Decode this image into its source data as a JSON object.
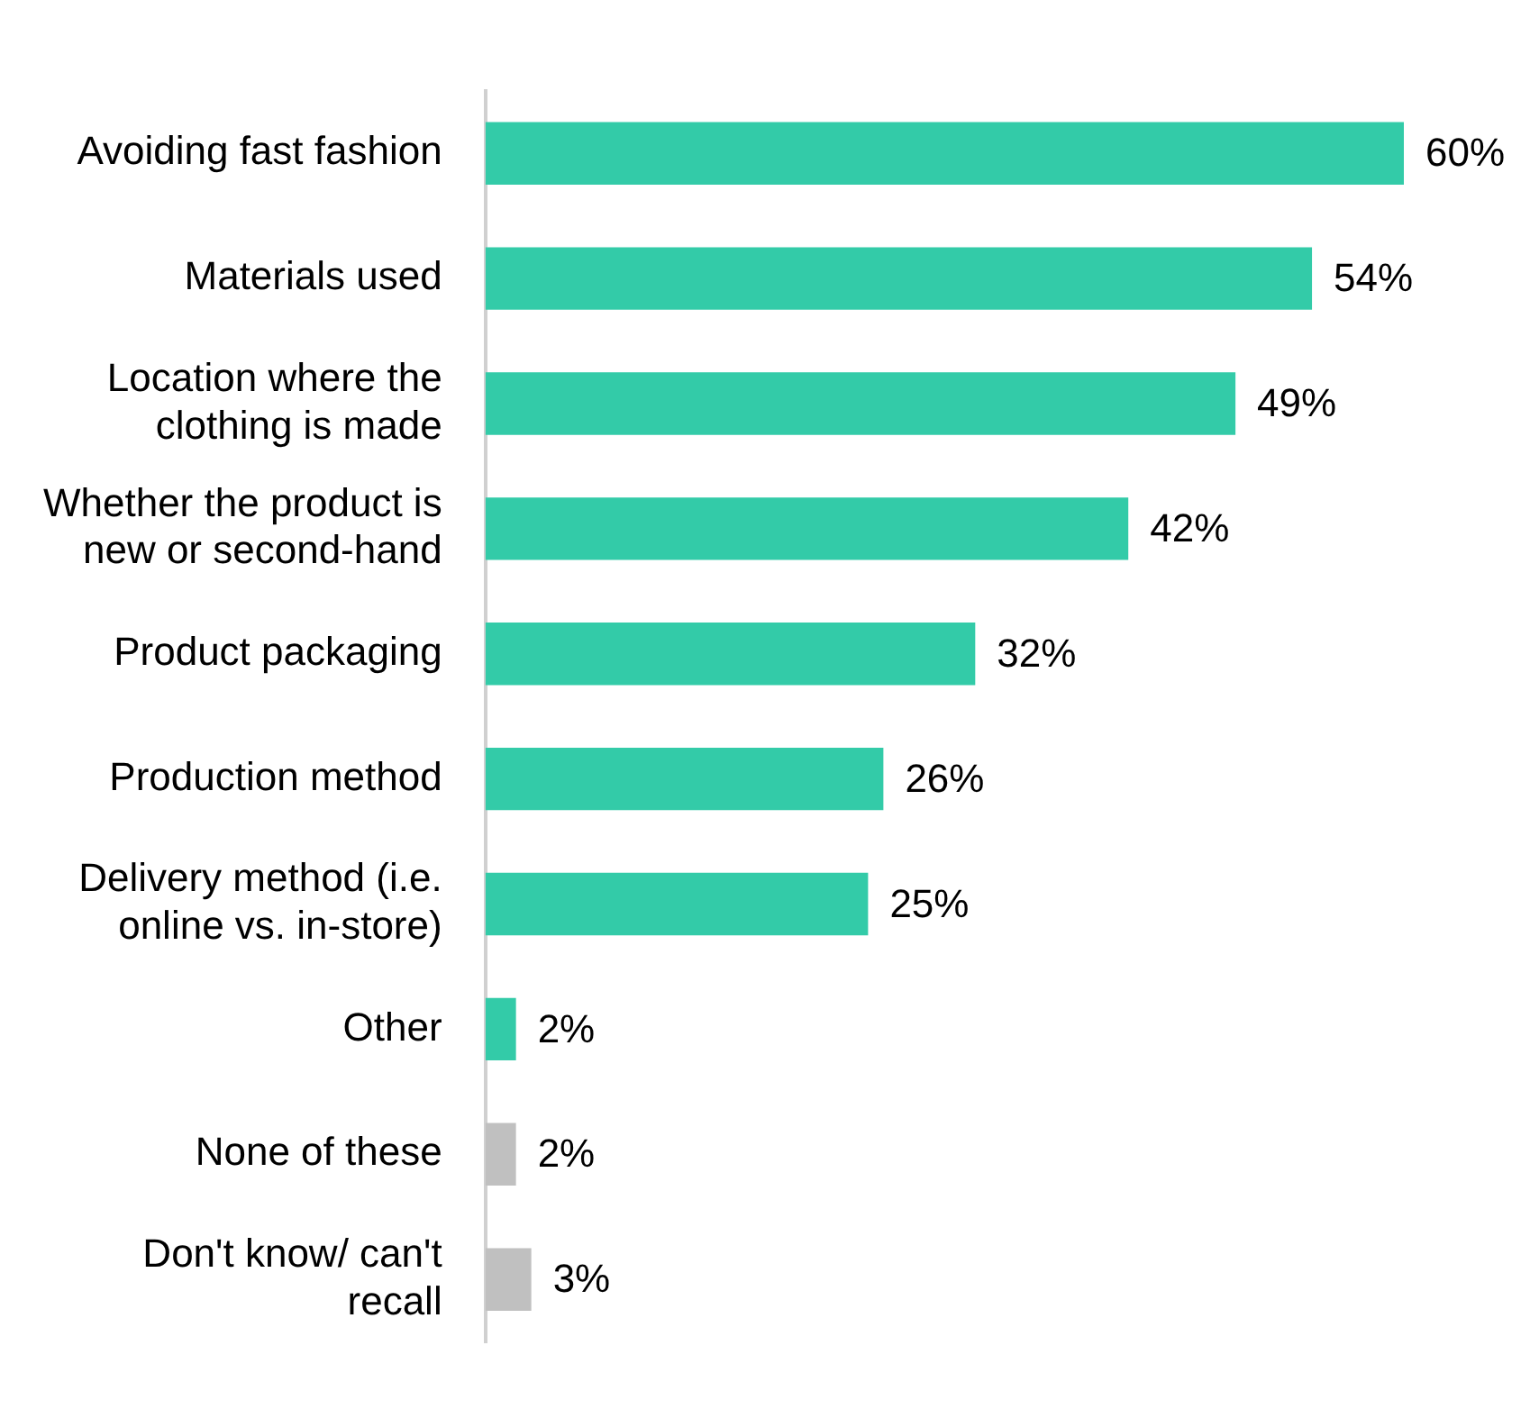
{
  "chart_data": {
    "type": "bar",
    "orientation": "horizontal",
    "categories": [
      "Avoiding fast fashion",
      "Materials used",
      "Location where the clothing is made",
      "Whether the product is new or second-hand",
      "Product packaging",
      "Production method",
      "Delivery method (i.e. online vs. in-store)",
      "Other",
      "None of these",
      "Don't know/ can't recall"
    ],
    "values": [
      60,
      54,
      49,
      42,
      32,
      26,
      25,
      2,
      2,
      3
    ],
    "colors": [
      "#33cba8",
      "#33cba8",
      "#33cba8",
      "#33cba8",
      "#33cba8",
      "#33cba8",
      "#33cba8",
      "#33cba8",
      "#c0c0c0",
      "#c0c0c0"
    ],
    "value_labels": [
      "60%",
      "54%",
      "49%",
      "42%",
      "32%",
      "26%",
      "25%",
      "2%",
      "2%",
      "3%"
    ],
    "legend": false
  }
}
